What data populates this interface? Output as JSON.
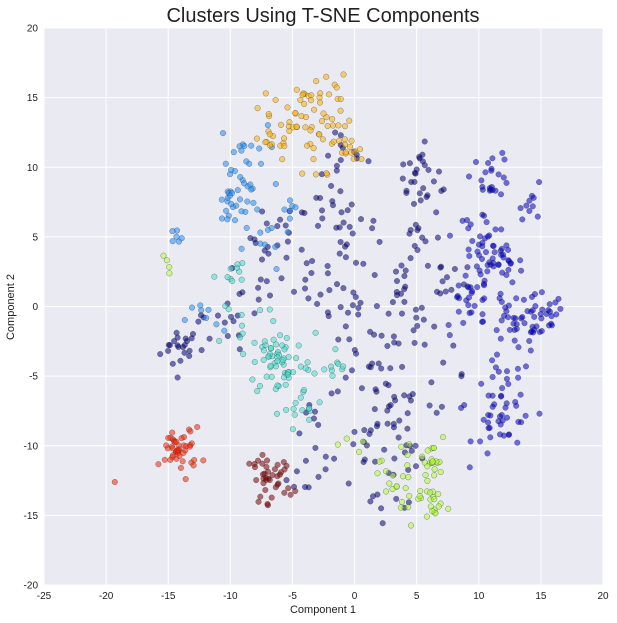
{
  "chart_data": {
    "type": "scatter",
    "title": "Clusters Using T-SNE Components",
    "xlabel": "Component 1",
    "ylabel": "Component 2",
    "xlim": [
      -25,
      20
    ],
    "ylim": [
      -20,
      20
    ],
    "xticks": [
      "-25",
      "-20",
      "-15",
      "-10",
      "-5",
      "0",
      "5",
      "10",
      "15",
      "20"
    ],
    "yticks": [
      "-20",
      "-15",
      "-10",
      "-5",
      "0",
      "5",
      "10",
      "15",
      "20"
    ],
    "grid": true,
    "background": "#EAEAF2",
    "gridColor": "#FFFFFF",
    "legend": "none",
    "series": [
      {
        "color": "#000080",
        "clusters": [
          [
            -14,
            -3,
            0.8,
            20
          ],
          [
            -10,
            -1,
            0.6,
            8
          ],
          [
            -6,
            5,
            1.2,
            18
          ],
          [
            -3,
            2,
            1.2,
            15
          ],
          [
            -2,
            7,
            1,
            14
          ],
          [
            -1,
            11,
            1,
            12
          ],
          [
            0,
            -1,
            1.2,
            16
          ],
          [
            1,
            -4,
            1.5,
            18
          ],
          [
            3,
            2,
            1,
            14
          ],
          [
            3,
            -7,
            1.3,
            18
          ],
          [
            5,
            -1,
            1.3,
            16
          ],
          [
            5,
            5,
            1,
            12
          ],
          [
            5,
            10,
            0.8,
            18
          ],
          [
            6,
            8,
            0.8,
            10
          ],
          [
            7,
            2,
            1,
            10
          ],
          [
            1,
            -10,
            1.3,
            14
          ],
          [
            3,
            -13,
            1.2,
            12
          ],
          [
            -4,
            -12,
            1,
            8
          ],
          [
            -12,
            -2,
            0.8,
            6
          ],
          [
            -8,
            1,
            1.2,
            12
          ],
          [
            0,
            5,
            1.5,
            12
          ],
          [
            7,
            -5,
            1,
            8
          ],
          [
            -3,
            -9,
            1,
            8
          ],
          [
            4,
            -10,
            1,
            10
          ]
        ]
      },
      {
        "color": "#0000CD",
        "clusters": [
          [
            11,
            3,
            1.3,
            45
          ],
          [
            13,
            -1,
            1.3,
            35
          ],
          [
            15,
            -1,
            1,
            25
          ],
          [
            12,
            -6,
            1.2,
            22
          ],
          [
            12,
            -8.5,
            1.2,
            30
          ],
          [
            11,
            9.5,
            0.8,
            22
          ],
          [
            14.5,
            7.5,
            0.6,
            10
          ],
          [
            9,
            0,
            1,
            18
          ],
          [
            10,
            5,
            1,
            20
          ]
        ]
      },
      {
        "color": "#1E90FF",
        "clusters": [
          [
            -9.5,
            8,
            1,
            22
          ],
          [
            -9,
            11,
            1,
            16
          ],
          [
            -10,
            7,
            0.7,
            10
          ],
          [
            -14.5,
            4.8,
            0.4,
            6
          ],
          [
            -12,
            -1,
            0.8,
            8
          ],
          [
            -7,
            4.5,
            1,
            10
          ],
          [
            -5,
            7,
            0.7,
            6
          ]
        ]
      },
      {
        "color": "#40E0D0",
        "clusters": [
          [
            -6,
            -4,
            1.3,
            50
          ],
          [
            -4,
            -7.5,
            0.8,
            14
          ],
          [
            -2,
            -4.5,
            0.8,
            10
          ],
          [
            -10,
            2.5,
            0.6,
            10
          ],
          [
            -6,
            -2,
            1.2,
            12
          ],
          [
            -9,
            -1,
            1,
            8
          ]
        ]
      },
      {
        "color": "#FFB000",
        "clusters": [
          [
            -4,
            14,
            1.2,
            32
          ],
          [
            -7,
            12.5,
            1,
            20
          ],
          [
            -0.5,
            11,
            0.6,
            12
          ],
          [
            -2,
            16,
            0.6,
            8
          ],
          [
            -3,
            11,
            1,
            12
          ],
          [
            -1,
            13,
            0.6,
            6
          ]
        ]
      },
      {
        "color": "#ADFF2F",
        "clusters": [
          [
            5,
            -13.5,
            1,
            25
          ],
          [
            6,
            -11,
            0.8,
            20
          ],
          [
            3,
            -12,
            0.9,
            10
          ],
          [
            -15,
            3,
            0.4,
            4
          ],
          [
            0,
            -10,
            0.6,
            4
          ],
          [
            6.5,
            -14.5,
            0.6,
            8
          ]
        ]
      },
      {
        "color": "#FF2200",
        "clusters": [
          [
            -14,
            -10.3,
            0.8,
            45
          ]
        ],
        "points": [
          [
            -19.3,
            -12.6
          ]
        ]
      },
      {
        "color": "#800000",
        "clusters": [
          [
            -6.5,
            -12.5,
            0.8,
            30
          ],
          [
            -7.5,
            -11.5,
            0.5,
            10
          ]
        ]
      }
    ]
  }
}
